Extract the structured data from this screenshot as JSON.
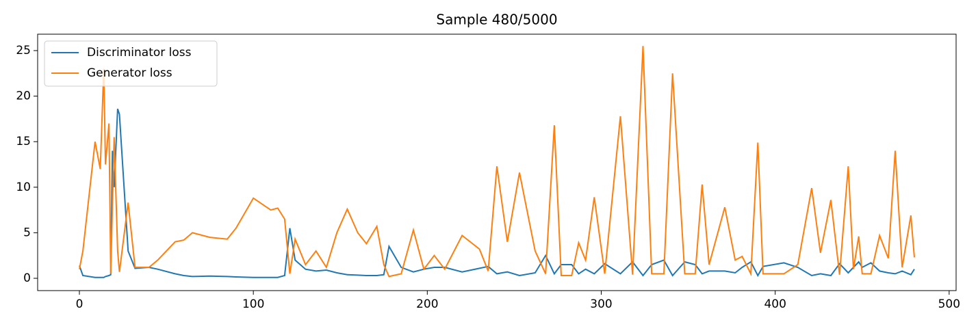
{
  "chart_data": {
    "type": "line",
    "title": "Sample 480/5000",
    "x": [
      0,
      2,
      9,
      12,
      14,
      15,
      17,
      18,
      19,
      20,
      22,
      23,
      28,
      32,
      40,
      45,
      55,
      60,
      65,
      75,
      85,
      90,
      100,
      110,
      114,
      118,
      121,
      124,
      130,
      136,
      142,
      148,
      154,
      160,
      165,
      171,
      175,
      178,
      185,
      192,
      198,
      204,
      210,
      220,
      230,
      235,
      240,
      246,
      253,
      262,
      268,
      273,
      277,
      283,
      287,
      291,
      296,
      302,
      311,
      318,
      324,
      329,
      336,
      341,
      348,
      354,
      358,
      362,
      371,
      377,
      381,
      386,
      390,
      393,
      405,
      413,
      421,
      426,
      432,
      437,
      442,
      445,
      448,
      450,
      455,
      460,
      465,
      469,
      473,
      478,
      480
    ],
    "series": [
      {
        "name": "Discriminator loss",
        "color": "#1f77b4",
        "values": [
          1.4,
          0.3,
          0.1,
          0.1,
          0.1,
          0.2,
          0.3,
          0.4,
          14,
          10,
          18.6,
          18,
          3,
          1.1,
          1.2,
          1.0,
          0.5,
          0.3,
          0.2,
          0.25,
          0.2,
          0.15,
          0.1,
          0.1,
          0.1,
          0.3,
          5.5,
          2,
          1,
          0.8,
          0.9,
          0.6,
          0.4,
          0.35,
          0.3,
          0.3,
          0.4,
          3.5,
          1.2,
          0.7,
          1.0,
          1.2,
          1.2,
          0.7,
          1.1,
          1.3,
          0.5,
          0.7,
          0.3,
          0.6,
          2.5,
          0.5,
          1.5,
          1.5,
          0.5,
          1,
          0.5,
          1.6,
          0.5,
          1.8,
          0.3,
          1.5,
          2,
          0.3,
          1.8,
          1.5,
          0.5,
          0.8,
          0.8,
          0.6,
          1.2,
          1.8,
          0.3,
          1.3,
          1.7,
          1.2,
          0.3,
          0.5,
          0.3,
          1.6,
          0.6,
          1.2,
          1.8,
          1.2,
          1.7,
          0.8,
          0.6,
          0.5,
          0.8,
          0.4,
          1
        ]
      },
      {
        "name": "Generator loss",
        "color": "#ff7f0e",
        "values": [
          1.0,
          3,
          15,
          12,
          23,
          12.5,
          17,
          0.5,
          8,
          15.5,
          3,
          0.7,
          8.3,
          1.2,
          1.2,
          2,
          4,
          4.2,
          5,
          4.5,
          4.3,
          5.5,
          8.8,
          7.5,
          7.7,
          6.5,
          0.5,
          4.3,
          1.5,
          3,
          1.2,
          5,
          7.6,
          5,
          3.8,
          5.7,
          1.5,
          0.2,
          0.5,
          5.3,
          1.0,
          2.5,
          1.0,
          4.7,
          3.2,
          0.8,
          12.3,
          4,
          11.6,
          3,
          0.5,
          16.8,
          0.3,
          0.3,
          3.9,
          2,
          8.9,
          0.5,
          17.8,
          0.4,
          25.5,
          0.5,
          0.5,
          22.5,
          0.5,
          0.5,
          10.3,
          1.5,
          7.8,
          2,
          2.4,
          0.5,
          14.9,
          0.5,
          0.5,
          1.5,
          9.9,
          2.8,
          8.6,
          0.4,
          12.3,
          1,
          4.6,
          0.5,
          0.5,
          4.7,
          2.2,
          14,
          1.2,
          6.9,
          2.3
        ]
      }
    ],
    "xlim": [
      -24,
      504
    ],
    "ylim": [
      -1.35,
      26.8
    ],
    "xticks": [
      0,
      100,
      200,
      300,
      400,
      500
    ],
    "yticks": [
      0,
      5,
      10,
      15,
      20,
      25
    ],
    "legend": "upper left"
  }
}
